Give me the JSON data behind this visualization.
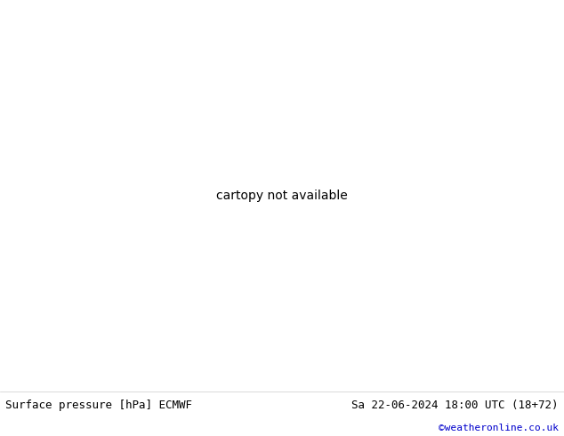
{
  "title_left": "Surface pressure [hPa] ECMWF",
  "title_right": "Sa 22-06-2024 18:00 UTC (18+72)",
  "watermark": "©weatheronline.co.uk",
  "land_color": "#c8f0a0",
  "sea_color": "#c8f0a0",
  "border_color": "#999999",
  "coast_color": "#999999",
  "bottom_bar_color": "#ffffff",
  "bottom_bar_height": 50,
  "fig_width": 6.34,
  "fig_height": 4.9,
  "dpi": 100,
  "label_fontsize": 9,
  "watermark_color": "#0000cc",
  "watermark_fontsize": 8,
  "extent": [
    -12,
    63,
    20,
    58
  ],
  "black_color": "#000000",
  "red_color": "#cc0000",
  "blue_color": "#0000cc",
  "isobar_lw": 1.0,
  "label_fontsize_iso": 7
}
